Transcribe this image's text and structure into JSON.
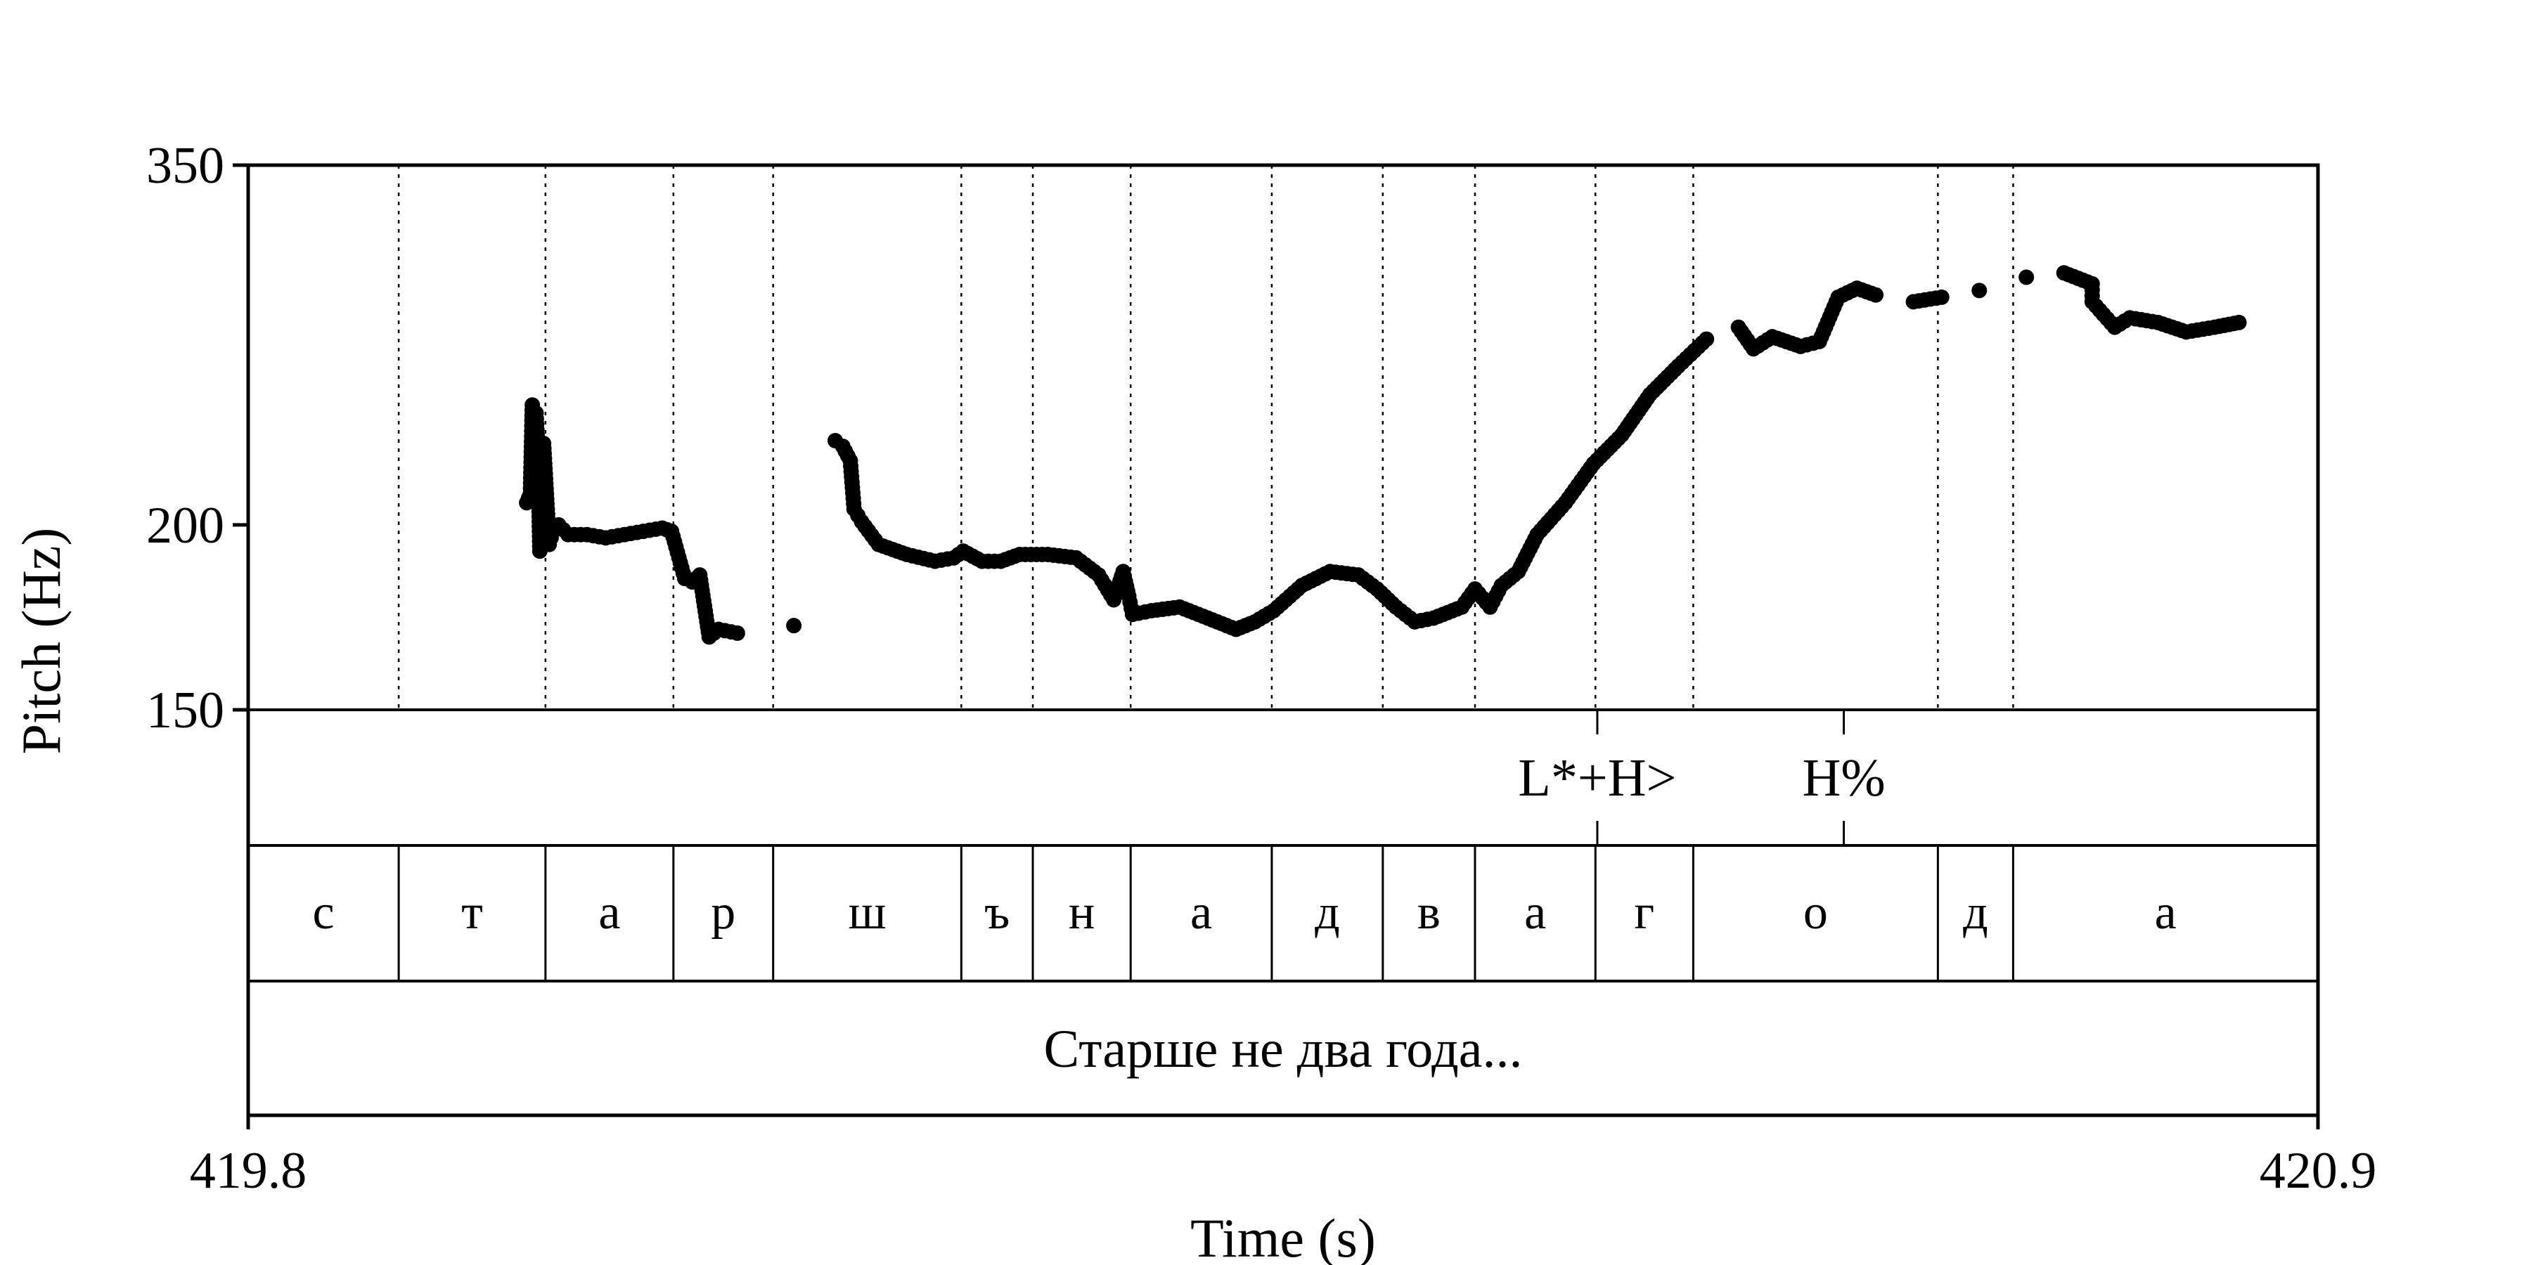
{
  "chart_data": {
    "type": "scatter",
    "title": "",
    "xlabel": "Time (s)",
    "ylabel": "Pitch (Hz)",
    "xlim": [
      419.8,
      420.9
    ],
    "ylim": [
      150,
      350
    ],
    "x_tick_labels": [
      "419.8",
      "420.9"
    ],
    "y_tick_labels": [
      "150",
      "200",
      "350"
    ],
    "y_ticks": [
      150,
      200,
      350
    ],
    "y_scale": "log",
    "grid": false,
    "point_color": "#000000",
    "series": [
      {
        "values": [
          [
            419.948,
            207
          ],
          [
            419.95,
            210
          ],
          [
            419.951,
            241
          ],
          [
            419.953,
            238
          ],
          [
            419.954,
            224
          ],
          [
            419.956,
            226
          ],
          [
            419.957,
            227
          ],
          [
            419.96,
            194
          ],
          [
            419.962,
            198
          ],
          [
            419.965,
            200
          ],
          [
            419.97,
            197
          ],
          [
            419.98,
            197
          ],
          [
            419.99,
            196
          ],
          [
            420.0,
            197
          ],
          [
            420.01,
            198
          ],
          [
            420.02,
            199
          ],
          [
            420.025,
            198
          ],
          [
            420.032,
            184
          ],
          [
            420.036,
            183
          ],
          [
            420.04,
            185
          ],
          [
            420.045,
            168
          ],
          [
            420.05,
            170
          ],
          [
            420.06,
            169
          ],
          [
            420.112,
            228
          ],
          [
            420.116,
            226
          ],
          [
            420.12,
            221
          ],
          [
            420.122,
            205
          ],
          [
            420.126,
            201
          ],
          [
            420.135,
            194
          ],
          [
            420.15,
            191
          ],
          [
            420.165,
            189
          ],
          [
            420.175,
            190
          ],
          [
            420.18,
            192
          ],
          [
            420.19,
            189
          ],
          [
            420.2,
            189
          ],
          [
            420.21,
            191
          ],
          [
            420.225,
            191
          ],
          [
            420.24,
            190
          ],
          [
            420.252,
            185
          ],
          [
            420.26,
            178
          ],
          [
            420.265,
            186
          ],
          [
            420.27,
            174
          ],
          [
            420.28,
            175
          ],
          [
            420.295,
            176
          ],
          [
            420.305,
            174
          ],
          [
            420.315,
            172
          ],
          [
            420.325,
            170
          ],
          [
            420.335,
            172
          ],
          [
            420.345,
            175
          ],
          [
            420.36,
            182
          ],
          [
            420.375,
            186
          ],
          [
            420.39,
            185
          ],
          [
            420.4,
            181
          ],
          [
            420.41,
            176
          ],
          [
            420.42,
            172
          ],
          [
            420.43,
            173
          ],
          [
            420.445,
            176
          ],
          [
            420.46,
            176
          ],
          [
            420.466,
            182
          ],
          [
            420.475,
            186
          ],
          [
            420.485,
            197
          ],
          [
            420.5,
            207
          ],
          [
            420.515,
            220
          ],
          [
            420.53,
            230
          ],
          [
            420.545,
            245
          ],
          [
            420.56,
            256
          ],
          [
            420.575,
            267
          ],
          [
            420.592,
            272
          ],
          [
            420.6,
            263
          ],
          [
            420.61,
            268
          ],
          [
            420.625,
            264
          ],
          [
            420.635,
            266
          ],
          [
            420.645,
            285
          ],
          [
            420.655,
            289
          ],
          [
            420.665,
            286
          ],
          [
            420.685,
            283
          ],
          [
            420.7,
            285
          ],
          [
            420.72,
            288
          ],
          [
            420.745,
            294
          ],
          [
            420.765,
            296
          ],
          [
            420.78,
            291
          ],
          [
            420.792,
            272
          ],
          [
            420.8,
            276
          ],
          [
            420.815,
            274
          ],
          [
            420.83,
            270
          ],
          [
            420.845,
            272
          ],
          [
            420.858,
            274
          ],
          [
            419.955,
            192
          ],
          [
            420.09,
            171
          ],
          [
            420.268,
            179
          ],
          [
            420.452,
            181
          ],
          [
            420.78,
            283
          ]
        ]
      }
    ],
    "tiers": {
      "tones": {
        "boundaries": [
          420.517,
          420.648
        ],
        "labels": [
          {
            "text": "L*+H>",
            "x": 420.517
          },
          {
            "text": "H%",
            "x": 420.648
          }
        ]
      },
      "segments": {
        "boundaries": [
          419.88,
          419.958,
          420.026,
          420.079,
          420.179,
          420.217,
          420.269,
          420.344,
          420.403,
          420.452,
          420.516,
          420.568,
          420.698,
          420.738
        ],
        "labels": [
          "с",
          "т",
          "а",
          "р",
          "ш",
          "ъ",
          "н",
          "а",
          "д",
          "в",
          "а",
          "г",
          "о",
          "д",
          "а"
        ]
      },
      "sentence": {
        "text": "Старше не два года..."
      }
    }
  }
}
